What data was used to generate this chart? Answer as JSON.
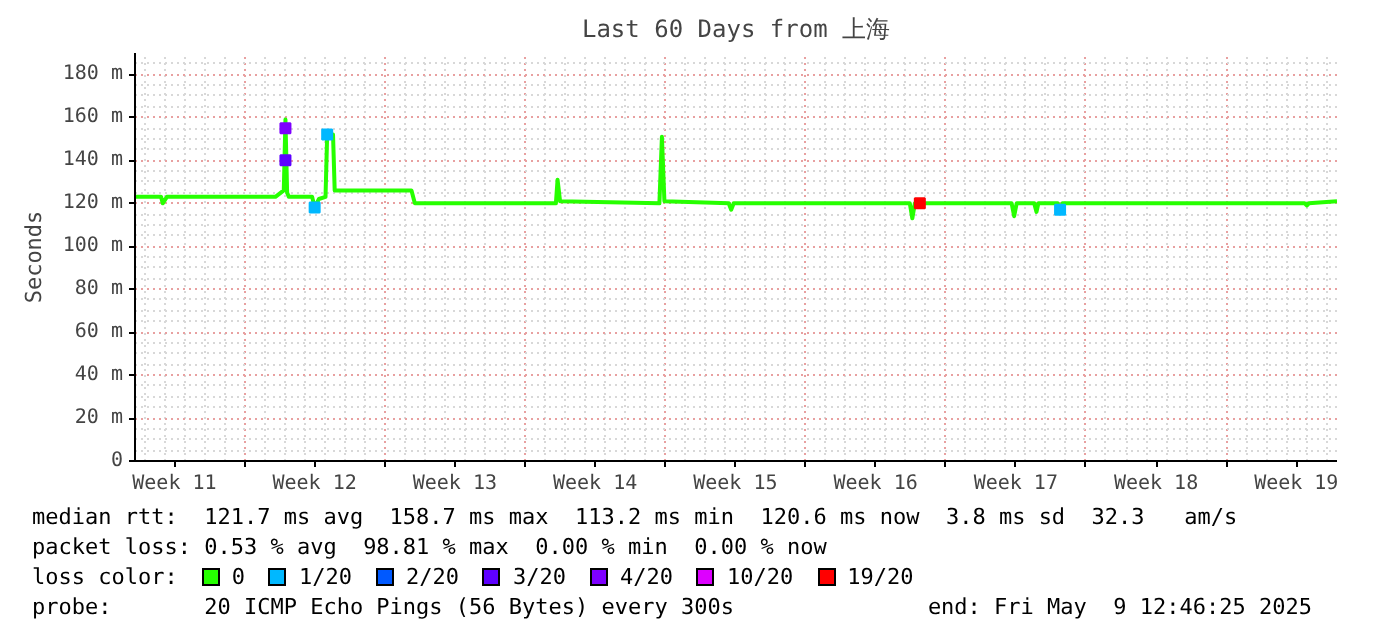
{
  "chart_data": {
    "type": "line",
    "title": "Last 60 Days from 上海",
    "ylabel": "Seconds",
    "legend_title": "loss color:",
    "legend": "bottom",
    "grid": true,
    "marker": "none",
    "line_style": "solid",
    "xlim": [
      "2025-03-10T12:46",
      "2025-05-09T12:46"
    ],
    "xticks": [
      {
        "value": "2025-03-12T12:00",
        "label": "Week 11"
      },
      {
        "value": "2025-03-19T12:00",
        "label": "Week 12"
      },
      {
        "value": "2025-03-26T12:00",
        "label": "Week 13"
      },
      {
        "value": "2025-04-02T12:00",
        "label": "Week 14"
      },
      {
        "value": "2025-04-09T12:00",
        "label": "Week 15"
      },
      {
        "value": "2025-04-16T12:00",
        "label": "Week 16"
      },
      {
        "value": "2025-04-23T12:00",
        "label": "Week 17"
      },
      {
        "value": "2025-04-30T12:00",
        "label": "Week 18"
      },
      {
        "value": "2025-05-07T12:00",
        "label": "Week 19"
      },
      {
        "value": "2025-03-16",
        "label": null
      },
      {
        "value": "2025-03-23",
        "label": null
      },
      {
        "value": "2025-03-30",
        "label": null
      },
      {
        "value": "2025-04-06",
        "label": null
      },
      {
        "value": "2025-04-13",
        "label": null
      },
      {
        "value": "2025-04-20",
        "label": null
      },
      {
        "value": "2025-04-27",
        "label": null
      },
      {
        "value": "2025-05-04",
        "label": null
      }
    ],
    "ylim": [
      0,
      190
    ],
    "yticks": [
      0,
      {
        "value": 20,
        "label": "20 m"
      },
      {
        "value": 40,
        "label": "40 m"
      },
      {
        "value": 60,
        "label": "60 m"
      },
      {
        "value": 80,
        "label": "80 m"
      },
      {
        "value": 100,
        "label": "100 m"
      },
      {
        "value": 120,
        "label": "120 m"
      },
      {
        "value": 140,
        "label": "140 m"
      },
      {
        "value": 160,
        "label": "160 m"
      },
      {
        "value": 180,
        "label": "180 m"
      }
    ],
    "series": [
      {
        "name": "0",
        "color": "#26ff00",
        "x": [
          "2025-03-10T12:46",
          "2025-03-11T20:00",
          "2025-03-11T22:00",
          "2025-03-12T03:00",
          "2025-03-17T13:00",
          "2025-03-17T23:00",
          "2025-03-18T01:00",
          "2025-03-18T03:00",
          "2025-03-18T05:00",
          "2025-03-19T09:00",
          "2025-03-19T12:00",
          "2025-03-19T17:00",
          "2025-03-20T01:00",
          "2025-03-20T03:00",
          "2025-03-20T10:00",
          "2025-03-20T12:00",
          "2025-03-24T08:00",
          "2025-03-24T12:00",
          "2025-03-31T13:00",
          "2025-03-31T15:00",
          "2025-03-31T18:00",
          "2025-04-05T17:00",
          "2025-04-05T20:00",
          "2025-04-05T23:00",
          "2025-04-09T04:00",
          "2025-04-09T07:00",
          "2025-04-09T10:00",
          "2025-04-18T05:00",
          "2025-04-18T08:00",
          "2025-04-18T11:00",
          "2025-04-23T07:00",
          "2025-04-23T10:00",
          "2025-04-23T13:00",
          "2025-04-24T10:00",
          "2025-04-24T12:46",
          "2025-04-24T15:00",
          "2025-04-25T14:00",
          "2025-04-25T17:00",
          "2025-04-25T20:00",
          "2025-05-07T22:00",
          "2025-05-08T00:46",
          "2025-05-08T03:00",
          "2025-05-09T12:46"
        ],
        "values": [
          123,
          123,
          120,
          123,
          123,
          126,
          159,
          125,
          123,
          123,
          118,
          122,
          123,
          152,
          152,
          126,
          126,
          120,
          120,
          131,
          121,
          120,
          151,
          121,
          120,
          117,
          120,
          120,
          113,
          120,
          120,
          114,
          120,
          120,
          116,
          120,
          120,
          117,
          120,
          120,
          119,
          120,
          121
        ]
      },
      {
        "name": "1/20",
        "color": "#00b8ff",
        "type": "scatter",
        "marker": "square",
        "x": [
          "2025-03-20T03:00",
          "2025-03-19T12:00",
          "2025-04-25T17:00"
        ],
        "values": [
          152,
          118,
          117
        ]
      },
      {
        "name": "2/20",
        "color": "#0059ff",
        "type": "scatter",
        "marker": "square"
      },
      {
        "name": "3/20",
        "color": "#5e00ff",
        "type": "scatter",
        "marker": "square",
        "x": [
          "2025-03-18T01:00"
        ],
        "values": [
          140
        ]
      },
      {
        "name": "4/20",
        "color": "#7e00ff",
        "type": "scatter",
        "marker": "square",
        "x": [
          "2025-03-18T01:00"
        ],
        "values": [
          155
        ]
      },
      {
        "name": "10/20",
        "color": "#dd00ff",
        "type": "scatter",
        "marker": "square"
      },
      {
        "name": "19/20",
        "color": "#ff0000",
        "type": "scatter",
        "marker": "square",
        "x": [
          "2025-04-18T17:00"
        ],
        "values": [
          120
        ]
      }
    ],
    "annotations": [
      "median rtt:  121.7 ms avg  158.7 ms max  113.2 ms min  120.6 ms now  3.8 ms sd  32.3   am/s",
      "packet loss: 0.53 % avg  98.81 % max  0.00 % min  0.00 % now",
      "probe:       20 ICMP Echo Pings (56 Bytes) every 300s",
      "end: Fri May  9 12:46:25 2025"
    ]
  }
}
